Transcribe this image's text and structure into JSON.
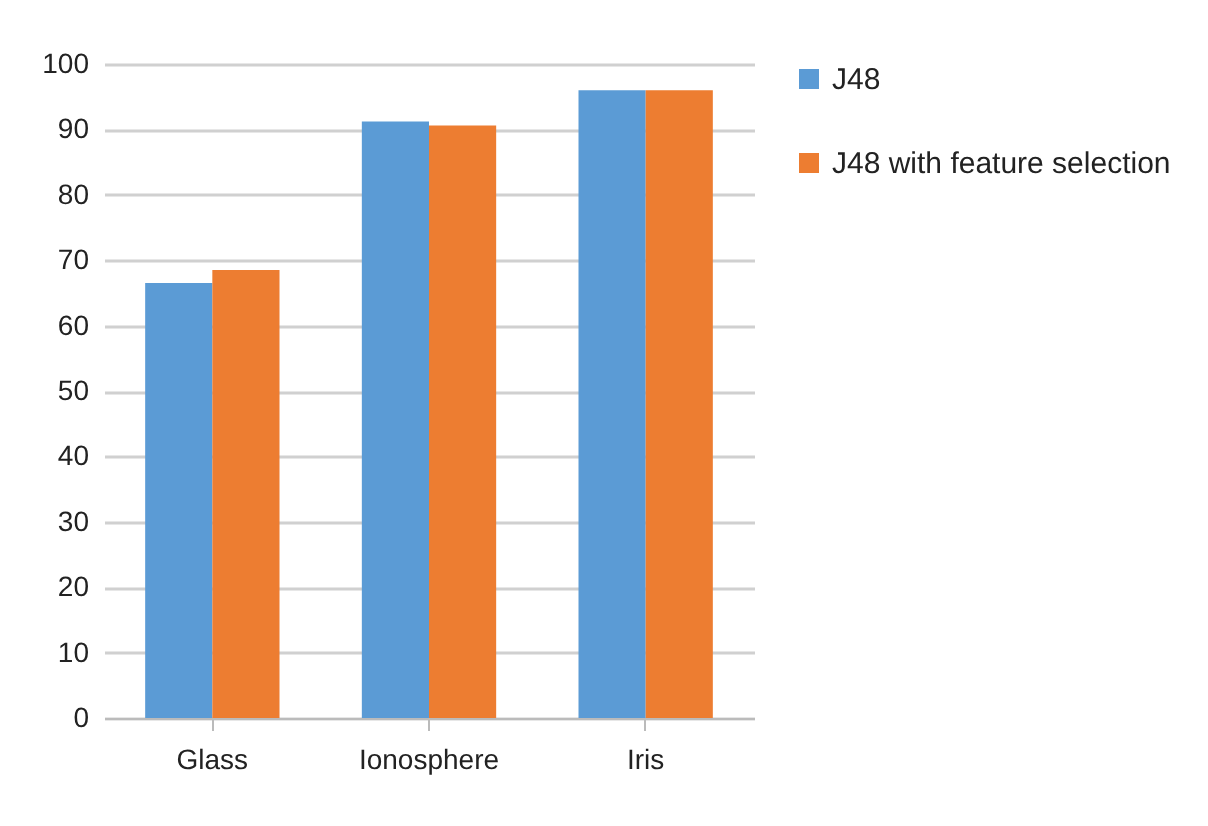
{
  "chart_data": {
    "type": "bar",
    "categories": [
      "Glass",
      "Ionosphere",
      "Iris"
    ],
    "series": [
      {
        "name": "J48",
        "color": "#5b9bd5",
        "values": [
          66.5,
          91.2,
          96
        ]
      },
      {
        "name": "J48  with feature selection",
        "color": "#ed7d31",
        "values": [
          68.5,
          90.6,
          96
        ]
      }
    ],
    "ylim": [
      0,
      100
    ],
    "yticks": [
      0,
      10,
      20,
      30,
      40,
      50,
      60,
      70,
      80,
      90,
      100
    ],
    "grid": "y",
    "legend": "right"
  }
}
